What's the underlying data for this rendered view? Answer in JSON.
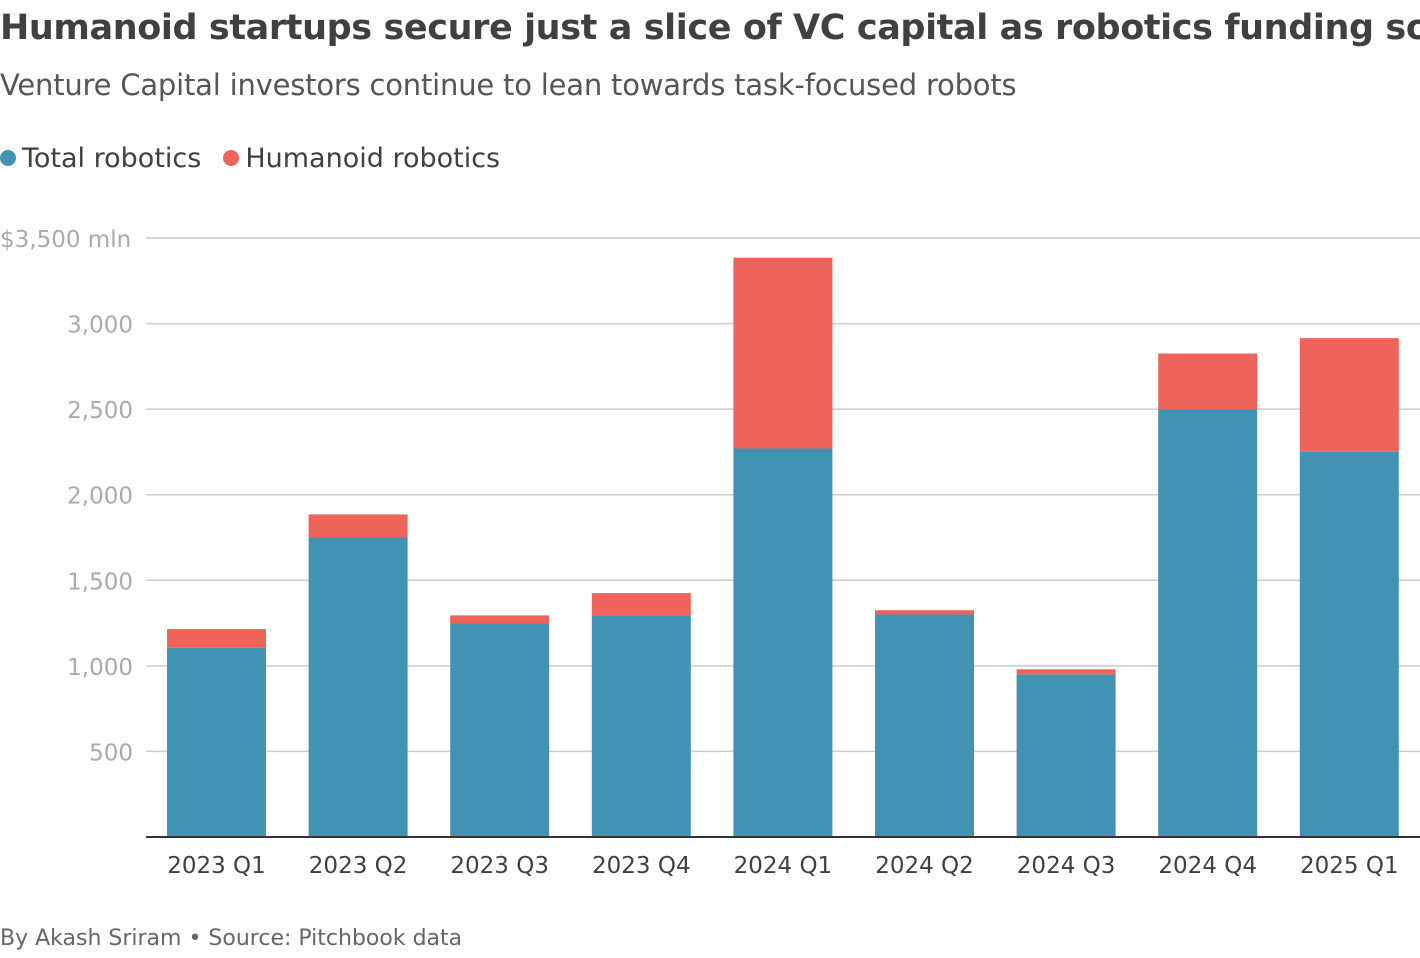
{
  "header": {
    "title": "Humanoid startups secure just a slice of VC capital as robotics funding soars",
    "subtitle": "Venture Capital investors continue to lean towards task-focused robots"
  },
  "legend": {
    "items": [
      {
        "label": "Total robotics",
        "color": "#4292b3"
      },
      {
        "label": "Humanoid robotics",
        "color": "#ee645a"
      }
    ]
  },
  "footer": {
    "credit": "By Akash Sriram • Source: Pitchbook data"
  },
  "chart_data": {
    "type": "bar",
    "stacked": true,
    "categories": [
      "2023 Q1",
      "2023 Q2",
      "2023 Q3",
      "2023 Q4",
      "2024 Q1",
      "2024 Q2",
      "2024 Q3",
      "2024 Q4",
      "2025 Q1"
    ],
    "series": [
      {
        "name": "Total robotics",
        "color": "#4292b3",
        "values": [
          1105,
          1750,
          1250,
          1295,
          2270,
          1300,
          950,
          2500,
          2250
        ]
      },
      {
        "name": "Humanoid robotics",
        "color": "#ee645a",
        "values": [
          110,
          135,
          45,
          130,
          1115,
          25,
          30,
          325,
          665
        ]
      }
    ],
    "ylim": [
      0,
      3500
    ],
    "yticks": [
      500,
      1000,
      1500,
      2000,
      2500,
      3000,
      3500
    ],
    "ytick_labels": [
      "500",
      "1,000",
      "1,500",
      "2,000",
      "2,500",
      "3,000",
      "$3,500 mln"
    ],
    "grid": true
  }
}
